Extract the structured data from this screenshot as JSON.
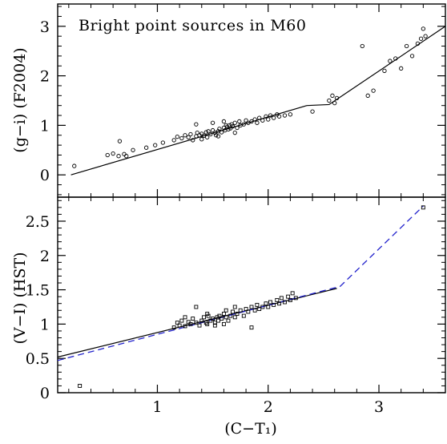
{
  "chart_data": [
    {
      "type": "scatter",
      "title": "Bright point sources in M60",
      "xlabel": "",
      "ylabel": "(g−i) (F2004)",
      "xlim": [
        0.1,
        3.6
      ],
      "ylim": [
        -0.45,
        3.45
      ],
      "xticks": [
        1,
        2,
        3
      ],
      "yticks": [
        0,
        1,
        2,
        3
      ],
      "ytick_labels": [
        "0",
        "1",
        "2",
        "3"
      ],
      "xtick_labels_shown": false,
      "marker": "circle",
      "series": [
        {
          "points": [
            [
              0.25,
              0.18
            ],
            [
              0.55,
              0.4
            ],
            [
              0.6,
              0.43
            ],
            [
              0.65,
              0.38
            ],
            [
              0.7,
              0.42
            ],
            [
              0.72,
              0.38
            ],
            [
              0.78,
              0.5
            ],
            [
              0.66,
              0.68
            ],
            [
              0.9,
              0.55
            ],
            [
              0.98,
              0.6
            ],
            [
              1.05,
              0.65
            ],
            [
              1.15,
              0.7
            ],
            [
              1.18,
              0.77
            ],
            [
              1.22,
              0.74
            ],
            [
              1.25,
              0.8
            ],
            [
              1.28,
              0.76
            ],
            [
              1.3,
              0.82
            ],
            [
              1.32,
              0.7
            ],
            [
              1.35,
              0.78
            ],
            [
              1.36,
              0.85
            ],
            [
              1.38,
              0.8
            ],
            [
              1.4,
              0.83
            ],
            [
              1.42,
              0.79
            ],
            [
              1.44,
              0.86
            ],
            [
              1.45,
              0.76
            ],
            [
              1.46,
              0.88
            ],
            [
              1.48,
              0.82
            ],
            [
              1.5,
              0.9
            ],
            [
              1.52,
              0.85
            ],
            [
              1.53,
              0.8
            ],
            [
              1.55,
              0.88
            ],
            [
              1.56,
              0.93
            ],
            [
              1.58,
              0.86
            ],
            [
              1.6,
              0.95
            ],
            [
              1.61,
              0.9
            ],
            [
              1.62,
              1.0
            ],
            [
              1.63,
              0.97
            ],
            [
              1.64,
              0.92
            ],
            [
              1.65,
              1.0
            ],
            [
              1.66,
              0.94
            ],
            [
              1.67,
              1.02
            ],
            [
              1.68,
              0.98
            ],
            [
              1.7,
              1.05
            ],
            [
              1.72,
              0.95
            ],
            [
              1.74,
              1.08
            ],
            [
              1.75,
              1.0
            ],
            [
              1.78,
              1.02
            ],
            [
              1.8,
              1.1
            ],
            [
              1.82,
              1.05
            ],
            [
              1.85,
              1.08
            ],
            [
              1.88,
              1.12
            ],
            [
              1.9,
              1.05
            ],
            [
              1.92,
              1.15
            ],
            [
              1.95,
              1.1
            ],
            [
              1.98,
              1.18
            ],
            [
              2.0,
              1.12
            ],
            [
              2.02,
              1.2
            ],
            [
              2.05,
              1.15
            ],
            [
              2.08,
              1.22
            ],
            [
              2.1,
              1.18
            ],
            [
              2.15,
              1.2
            ],
            [
              2.2,
              1.22
            ],
            [
              1.35,
              1.02
            ],
            [
              1.5,
              1.05
            ],
            [
              1.6,
              1.08
            ],
            [
              1.4,
              0.72
            ],
            [
              1.55,
              0.78
            ],
            [
              1.7,
              0.85
            ],
            [
              2.4,
              1.28
            ],
            [
              2.55,
              1.5
            ],
            [
              2.58,
              1.6
            ],
            [
              2.62,
              1.55
            ],
            [
              2.6,
              1.45
            ],
            [
              2.85,
              2.6
            ],
            [
              2.9,
              1.6
            ],
            [
              2.95,
              1.7
            ],
            [
              3.05,
              2.1
            ],
            [
              3.1,
              2.3
            ],
            [
              3.15,
              2.35
            ],
            [
              3.2,
              2.15
            ],
            [
              3.25,
              2.6
            ],
            [
              3.3,
              2.4
            ],
            [
              3.35,
              2.65
            ],
            [
              3.38,
              2.75
            ],
            [
              3.4,
              2.95
            ],
            [
              3.42,
              2.8
            ]
          ]
        }
      ],
      "fit_line": [
        [
          0.22,
          0.0
        ],
        [
          2.35,
          1.4
        ],
        [
          2.55,
          1.42
        ],
        [
          3.6,
          3.0
        ]
      ]
    },
    {
      "type": "scatter",
      "title": "",
      "xlabel": "(C−T₁)",
      "ylabel": "(V−I) (HST)",
      "xlim": [
        0.1,
        3.6
      ],
      "ylim": [
        0,
        2.85
      ],
      "xticks": [
        1,
        2,
        3
      ],
      "xtick_labels": [
        "1",
        "2",
        "3"
      ],
      "yticks": [
        0,
        0.5,
        1,
        1.5,
        2,
        2.5
      ],
      "ytick_labels": [
        "0",
        "0.5",
        "1",
        "1.5",
        "2",
        "2.5"
      ],
      "marker": "square",
      "series": [
        {
          "points": [
            [
              0.3,
              0.1
            ],
            [
              1.15,
              0.95
            ],
            [
              1.18,
              1.02
            ],
            [
              1.2,
              0.98
            ],
            [
              1.22,
              1.05
            ],
            [
              1.25,
              0.97
            ],
            [
              1.28,
              1.03
            ],
            [
              1.3,
              1.0
            ],
            [
              1.32,
              1.08
            ],
            [
              1.35,
              1.02
            ],
            [
              1.38,
              0.98
            ],
            [
              1.4,
              1.05
            ],
            [
              1.42,
              1.1
            ],
            [
              1.44,
              1.02
            ],
            [
              1.45,
              1.0
            ],
            [
              1.46,
              1.12
            ],
            [
              1.48,
              1.05
            ],
            [
              1.5,
              1.08
            ],
            [
              1.52,
              1.02
            ],
            [
              1.54,
              1.1
            ],
            [
              1.55,
              1.05
            ],
            [
              1.56,
              1.12
            ],
            [
              1.58,
              1.08
            ],
            [
              1.6,
              1.15
            ],
            [
              1.62,
              1.1
            ],
            [
              1.64,
              1.05
            ],
            [
              1.66,
              1.12
            ],
            [
              1.68,
              1.18
            ],
            [
              1.7,
              1.1
            ],
            [
              1.72,
              1.15
            ],
            [
              1.75,
              1.2
            ],
            [
              1.78,
              1.12
            ],
            [
              1.8,
              1.22
            ],
            [
              1.82,
              1.18
            ],
            [
              1.85,
              1.25
            ],
            [
              1.88,
              1.2
            ],
            [
              1.9,
              1.28
            ],
            [
              1.92,
              1.22
            ],
            [
              1.95,
              1.25
            ],
            [
              1.98,
              1.3
            ],
            [
              2.0,
              1.25
            ],
            [
              2.02,
              1.32
            ],
            [
              2.05,
              1.28
            ],
            [
              2.08,
              1.35
            ],
            [
              2.1,
              1.3
            ],
            [
              2.12,
              1.38
            ],
            [
              2.15,
              1.32
            ],
            [
              2.18,
              1.4
            ],
            [
              2.2,
              1.35
            ],
            [
              2.22,
              1.45
            ],
            [
              2.25,
              1.38
            ],
            [
              1.35,
              1.25
            ],
            [
              1.85,
              0.95
            ],
            [
              1.6,
              1.0
            ],
            [
              1.45,
              1.15
            ],
            [
              1.25,
              1.1
            ],
            [
              1.7,
              1.25
            ],
            [
              1.52,
              0.98
            ],
            [
              1.62,
              1.2
            ],
            [
              3.4,
              2.7
            ]
          ]
        }
      ],
      "fit_line": [
        [
          0.1,
          0.52
        ],
        [
          2.62,
          1.52
        ]
      ],
      "dashed_line": {
        "color": "#2222cc",
        "points": [
          [
            0.1,
            0.47
          ],
          [
            2.65,
            1.55
          ],
          [
            3.4,
            2.72
          ]
        ]
      }
    }
  ]
}
